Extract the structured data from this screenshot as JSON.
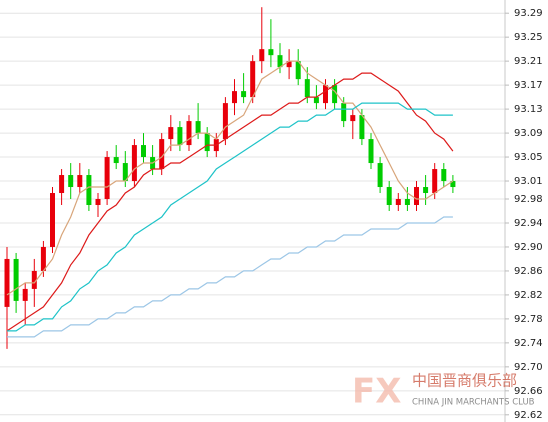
{
  "chart_data": {
    "type": "candlestick",
    "up_color": "#e8000b",
    "down_color": "#00cc00",
    "grid": true,
    "ylim": [
      92.608,
      93.312
    ],
    "yticks": [
      93.29,
      93.25,
      93.21,
      93.17,
      93.13,
      93.09,
      93.05,
      93.01,
      92.98,
      92.94,
      {
        "value": 92.9,
        "label": "92.90"
      },
      92.86,
      92.82,
      92.78,
      92.74,
      {
        "value": 92.7,
        "label": "92.70"
      },
      92.66,
      92.62
    ],
    "open": [
      92.8,
      92.88,
      92.81,
      92.83,
      92.86,
      92.9,
      92.99,
      93.02,
      93.0,
      93.02,
      92.97,
      92.98,
      93.05,
      93.04,
      93.01,
      93.07,
      93.05,
      93.03,
      93.08,
      93.1,
      93.07,
      93.11,
      93.09,
      93.06,
      93.08,
      93.14,
      93.16,
      93.15,
      93.21,
      93.23,
      93.22,
      93.2,
      93.21,
      93.18,
      93.15,
      93.14,
      93.17,
      93.14,
      93.11,
      93.12,
      93.08,
      93.04,
      93.0,
      92.97,
      92.98,
      92.97,
      93.0,
      92.99,
      93.03,
      93.01
    ],
    "high": [
      92.9,
      92.89,
      92.84,
      92.88,
      92.91,
      93.0,
      93.03,
      93.04,
      93.04,
      93.03,
      92.99,
      93.06,
      93.07,
      93.06,
      93.08,
      93.09,
      93.07,
      93.09,
      93.12,
      93.11,
      93.12,
      93.14,
      93.1,
      93.09,
      93.15,
      93.18,
      93.19,
      93.22,
      93.3,
      93.28,
      93.24,
      93.23,
      93.23,
      93.2,
      93.17,
      93.18,
      93.18,
      93.15,
      93.13,
      93.13,
      93.09,
      93.05,
      93.01,
      92.99,
      93.0,
      93.01,
      93.02,
      93.04,
      93.04,
      93.02
    ],
    "low": [
      92.73,
      92.79,
      92.77,
      92.8,
      92.85,
      92.89,
      92.97,
      92.98,
      92.99,
      92.96,
      92.95,
      92.97,
      93.03,
      93.0,
      93.0,
      93.04,
      93.02,
      93.02,
      93.06,
      93.06,
      93.06,
      93.08,
      93.05,
      93.05,
      93.07,
      93.12,
      93.14,
      93.14,
      93.19,
      93.2,
      93.19,
      93.18,
      93.17,
      93.14,
      93.13,
      93.13,
      93.13,
      93.1,
      93.08,
      93.07,
      93.03,
      92.99,
      92.96,
      92.96,
      92.96,
      92.96,
      92.97,
      92.98,
      93.0,
      92.99
    ],
    "close": [
      92.88,
      92.81,
      92.83,
      92.86,
      92.9,
      92.99,
      93.02,
      93.0,
      93.02,
      92.97,
      92.98,
      93.05,
      93.04,
      93.01,
      93.07,
      93.05,
      93.03,
      93.08,
      93.1,
      93.07,
      93.11,
      93.09,
      93.06,
      93.08,
      93.14,
      93.16,
      93.15,
      93.21,
      93.23,
      93.22,
      93.2,
      93.21,
      93.18,
      93.15,
      93.14,
      93.17,
      93.14,
      93.11,
      93.12,
      93.08,
      93.04,
      93.0,
      92.97,
      92.98,
      92.97,
      93.0,
      92.99,
      93.03,
      93.01,
      93.0
    ],
    "series": [
      {
        "color": "#d8a57a",
        "values": [
          92.82,
          92.83,
          92.84,
          92.84,
          92.86,
          92.88,
          92.92,
          92.95,
          92.99,
          93.0,
          93.0,
          93.0,
          93.01,
          93.01,
          93.03,
          93.04,
          93.04,
          93.05,
          93.07,
          93.07,
          93.08,
          93.09,
          93.09,
          93.08,
          93.1,
          93.11,
          93.12,
          93.15,
          93.18,
          93.19,
          93.2,
          93.21,
          93.21,
          93.19,
          93.18,
          93.17,
          93.16,
          93.14,
          93.14,
          93.12,
          93.1,
          93.07,
          93.04,
          93.01,
          92.99,
          92.98,
          92.98,
          92.99,
          93.0,
          93.01
        ]
      },
      {
        "color": "#dd1a1a",
        "values": [
          92.76,
          92.77,
          92.78,
          92.79,
          92.8,
          92.82,
          92.84,
          92.87,
          92.89,
          92.92,
          92.94,
          92.96,
          92.97,
          92.99,
          93.0,
          93.02,
          93.03,
          93.03,
          93.04,
          93.04,
          93.05,
          93.06,
          93.07,
          93.07,
          93.08,
          93.09,
          93.1,
          93.11,
          93.12,
          93.12,
          93.13,
          93.14,
          93.14,
          93.15,
          93.15,
          93.16,
          93.17,
          93.18,
          93.18,
          93.19,
          93.19,
          93.18,
          93.17,
          93.16,
          93.14,
          93.12,
          93.11,
          93.09,
          93.08,
          93.06
        ]
      },
      {
        "color": "#1ec3c8",
        "values": [
          92.76,
          92.76,
          92.77,
          92.77,
          92.78,
          92.78,
          92.8,
          92.81,
          92.83,
          92.84,
          92.86,
          92.87,
          92.89,
          92.9,
          92.92,
          92.93,
          92.94,
          92.95,
          92.97,
          92.98,
          92.99,
          93.0,
          93.01,
          93.03,
          93.04,
          93.05,
          93.06,
          93.07,
          93.08,
          93.09,
          93.1,
          93.1,
          93.11,
          93.11,
          93.12,
          93.12,
          93.13,
          93.13,
          93.13,
          93.14,
          93.14,
          93.14,
          93.14,
          93.14,
          93.13,
          93.13,
          93.13,
          93.12,
          93.12,
          93.12
        ]
      },
      {
        "color": "#9cc6e6",
        "values": [
          92.75,
          92.75,
          92.75,
          92.75,
          92.76,
          92.76,
          92.76,
          92.77,
          92.77,
          92.77,
          92.78,
          92.78,
          92.79,
          92.79,
          92.8,
          92.8,
          92.81,
          92.81,
          92.82,
          92.82,
          92.83,
          92.83,
          92.84,
          92.84,
          92.85,
          92.85,
          92.86,
          92.86,
          92.87,
          92.88,
          92.88,
          92.89,
          92.89,
          92.9,
          92.9,
          92.91,
          92.91,
          92.92,
          92.92,
          92.92,
          92.93,
          92.93,
          92.93,
          92.93,
          92.94,
          92.94,
          92.94,
          92.94,
          92.95,
          92.95
        ]
      }
    ],
    "watermark": {
      "logo": "FX",
      "name": "中国晋商俱乐部",
      "subtitle": "CHINA JIN MARCHANTS CLUB"
    }
  }
}
